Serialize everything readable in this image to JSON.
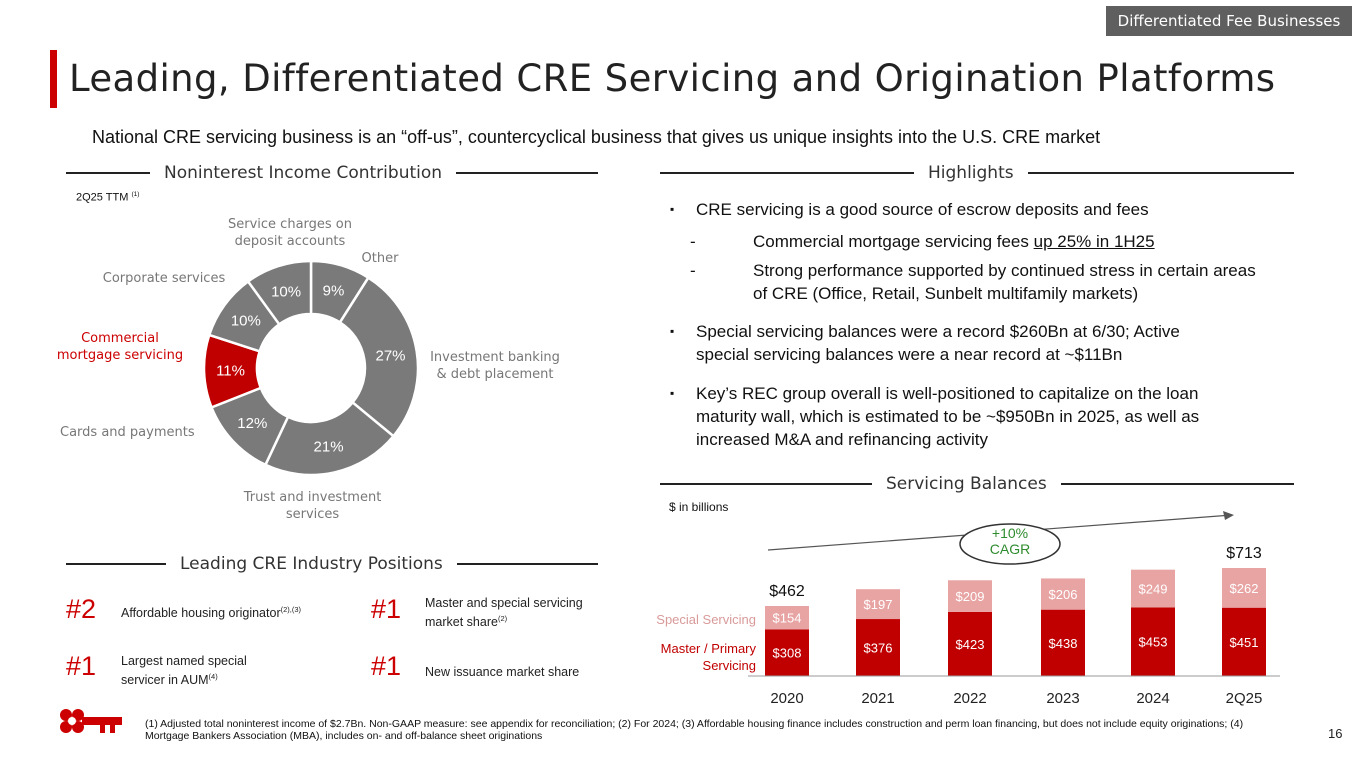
{
  "tag": "Differentiated Fee Businesses",
  "title": "Leading, Differentiated CRE Servicing and Origination Platforms",
  "subtitle": "National CRE servicing business is an “off-us”, countercyclical business that gives us unique insights into the U.S. CRE market",
  "sections": {
    "income": "Noninterest Income Contribution",
    "highlights": "Highlights",
    "servicing": "Servicing Balances",
    "positions": "Leading CRE Industry Positions"
  },
  "ttm_note": "2Q25 TTM",
  "ttm_sup": "(1)",
  "highlights": {
    "b1": "CRE servicing is a good source of escrow deposits and fees",
    "b1_sub1_pre": "Commercial mortgage servicing fees ",
    "b1_sub1_ul": "up 25% in 1H25",
    "b1_sub2": "Strong performance supported by continued stress in certain areas of CRE (Office, Retail, Sunbelt multifamily markets)",
    "b2": "Special servicing balances were a record $260Bn at 6/30; Active special servicing balances were a near record at ~$11Bn",
    "b3": "Key’s REC group overall is well-positioned to capitalize on the loan maturity wall, which is estimated to be ~$950Bn in 2025, as well as increased M&A and refinancing activity",
    "bullet_glyph": "▪",
    "dash_glyph": "-"
  },
  "units_note": "$ in billions",
  "cagr_label": "+10%\nCAGR",
  "positions": [
    {
      "rank": "#2",
      "text": "Affordable housing originator",
      "sup": "(2),(3)"
    },
    {
      "rank": "#1",
      "text": "Master and special servicing market share",
      "sup": "(2)"
    },
    {
      "rank": "#1",
      "text": "Largest named special servicer in AUM",
      "sup": "(4)"
    },
    {
      "rank": "#1",
      "text": "New issuance market share",
      "sup": ""
    }
  ],
  "footnote": "(1) Adjusted total noninterest income of $2.7Bn. Non-GAAP measure: see appendix for reconciliation; (2) For 2024; (3) Affordable housing finance includes construction and perm loan financing, but does not include equity originations; (4) Mortgage Bankers Association (MBA), includes on- and off-balance sheet originations",
  "page_number": "16",
  "logo_icon": "key-logo-icon",
  "colors": {
    "brand_red": "#cc0000",
    "donut_gray": "#7a7a7a",
    "bar_dark": "#c00000",
    "bar_light": "#e8a3a3",
    "cagr_green": "#2e8b2e"
  },
  "chart_data": [
    {
      "type": "pie",
      "variant": "donut",
      "slices": [
        {
          "label": "Other",
          "value": 9,
          "display": "9%",
          "highlight": false
        },
        {
          "label": "Investment banking\n& debt placement",
          "value": 27,
          "display": "27%",
          "highlight": false
        },
        {
          "label": "Trust and investment\nservices",
          "value": 21,
          "display": "21%",
          "highlight": false
        },
        {
          "label": "Cards and payments",
          "value": 12,
          "display": "12%",
          "highlight": false
        },
        {
          "label": "Commercial\nmortgage servicing",
          "value": 11,
          "display": "11%",
          "highlight": true
        },
        {
          "label": "Corporate services",
          "value": 10,
          "display": "10%",
          "highlight": false
        },
        {
          "label": "Service charges on\ndeposit accounts",
          "value": 10,
          "display": "10%",
          "highlight": false
        }
      ]
    },
    {
      "type": "bar",
      "stacked": true,
      "categories": [
        "2020",
        "2021",
        "2022",
        "2023",
        "2024",
        "2Q25"
      ],
      "series": [
        {
          "name": "Master / Primary\nServicing",
          "values": [
            308,
            376,
            423,
            438,
            453,
            451
          ],
          "labels": [
            "$308",
            "$376",
            "$423",
            "$438",
            "$453",
            "$451"
          ]
        },
        {
          "name": "Special Servicing",
          "values": [
            154,
            197,
            209,
            206,
            249,
            262
          ],
          "labels": [
            "$154",
            "$197",
            "$209",
            "$206",
            "$249",
            "$262"
          ]
        }
      ],
      "totals": [
        {
          "category": "2020",
          "label": "$462"
        },
        {
          "category": "2Q25",
          "label": "$713"
        }
      ],
      "ylim": [
        0,
        713
      ],
      "grid": false
    }
  ]
}
